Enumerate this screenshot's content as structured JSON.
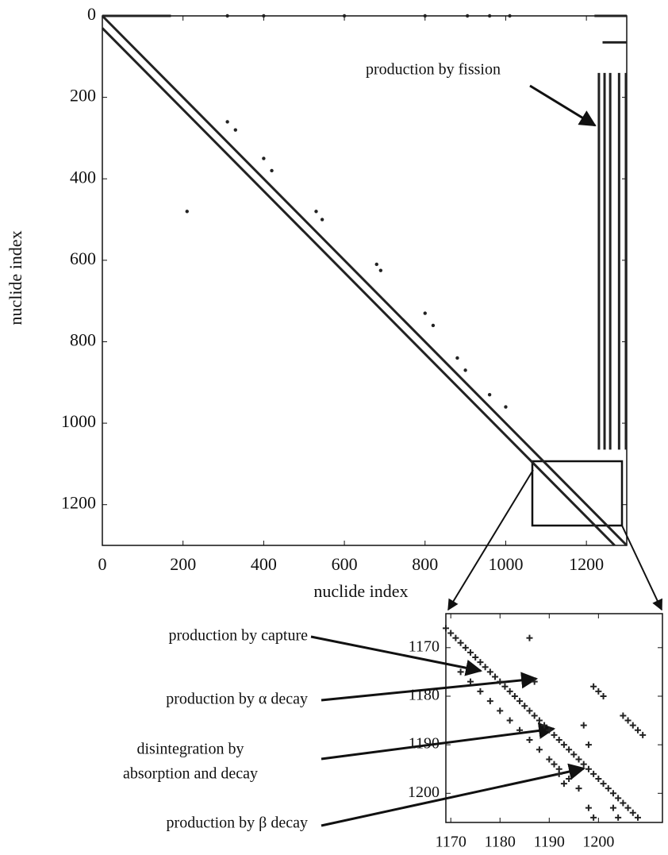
{
  "chart_data": [
    {
      "type": "spy",
      "xlabel": "nuclide index",
      "ylabel": "nuclide index",
      "xlim": [
        0,
        1300
      ],
      "ylim": [
        1300,
        0
      ],
      "xticks": [
        0,
        200,
        400,
        600,
        800,
        1000,
        1200
      ],
      "yticks": [
        0,
        200,
        400,
        600,
        800,
        1000,
        1200
      ],
      "color": "#222222",
      "segments": [
        {
          "x": [
            0,
            1300
          ],
          "y": [
            0,
            1300
          ]
        },
        {
          "x": [
            0,
            1270
          ],
          "y": [
            30,
            1300
          ]
        },
        {
          "x": [
            0,
            170
          ],
          "y": [
            0,
            0
          ]
        },
        {
          "x": [
            1220,
            1300
          ],
          "y": [
            0,
            0
          ]
        },
        {
          "x": [
            1240,
            1300
          ],
          "y": [
            65,
            65
          ]
        },
        {
          "x": [
            1231,
            1231
          ],
          "y": [
            140,
            1065
          ]
        },
        {
          "x": [
            1245,
            1245
          ],
          "y": [
            140,
            1065
          ]
        },
        {
          "x": [
            1259,
            1259
          ],
          "y": [
            140,
            1065
          ]
        },
        {
          "x": [
            1281,
            1281
          ],
          "y": [
            140,
            1065
          ]
        },
        {
          "x": [
            1298,
            1298
          ],
          "y": [
            140,
            1065
          ]
        }
      ],
      "x": [
        310,
        400,
        600,
        800,
        905,
        960,
        1010,
        310,
        330,
        400,
        420,
        530,
        545,
        680,
        690,
        800,
        820,
        880,
        900,
        960,
        1000,
        210
      ],
      "y": [
        0,
        0,
        0,
        0,
        0,
        0,
        0,
        260,
        280,
        350,
        380,
        480,
        500,
        610,
        625,
        730,
        760,
        840,
        870,
        930,
        960,
        480
      ],
      "annotation": "production by fission"
    },
    {
      "type": "scatter",
      "marker": "plus",
      "color": "#222222",
      "xlim": [
        1169,
        1213
      ],
      "ylim": [
        1206,
        1163
      ],
      "xticks": [
        1170,
        1180,
        1190,
        1200
      ],
      "yticks": [
        1170,
        1180,
        1190,
        1200
      ],
      "x": [
        1169,
        1170,
        1171,
        1172,
        1173,
        1174,
        1175,
        1176,
        1177,
        1178,
        1179,
        1180,
        1181,
        1182,
        1183,
        1184,
        1185,
        1186,
        1187,
        1188,
        1189,
        1190,
        1191,
        1192,
        1193,
        1194,
        1195,
        1196,
        1197,
        1198,
        1199,
        1200,
        1201,
        1202,
        1203,
        1204,
        1205,
        1206,
        1207,
        1208,
        1172,
        1174,
        1176,
        1178,
        1180,
        1182,
        1184,
        1186,
        1188,
        1190,
        1192,
        1194,
        1196,
        1186,
        1187,
        1199,
        1200,
        1201,
        1205,
        1206,
        1207,
        1208,
        1209,
        1197,
        1198,
        1191,
        1192,
        1193,
        1198,
        1199,
        1203,
        1204
      ],
      "y": [
        1166,
        1167,
        1168,
        1169,
        1170,
        1171,
        1172,
        1173,
        1174,
        1175,
        1176,
        1177,
        1178,
        1179,
        1180,
        1181,
        1182,
        1183,
        1184,
        1185,
        1186,
        1187,
        1188,
        1189,
        1190,
        1191,
        1192,
        1193,
        1194,
        1195,
        1196,
        1197,
        1198,
        1199,
        1200,
        1201,
        1202,
        1203,
        1204,
        1205,
        1175,
        1177,
        1179,
        1181,
        1183,
        1185,
        1187,
        1189,
        1191,
        1193,
        1195,
        1197,
        1199,
        1168,
        1177,
        1178,
        1179,
        1180,
        1184,
        1185,
        1186,
        1187,
        1188,
        1186,
        1190,
        1194,
        1196,
        1198,
        1203,
        1205,
        1203,
        1205
      ],
      "annotations": [
        "production by capture",
        "production by α decay",
        [
          "disintegration by",
          "absorption and decay"
        ],
        "production by β decay"
      ]
    }
  ]
}
